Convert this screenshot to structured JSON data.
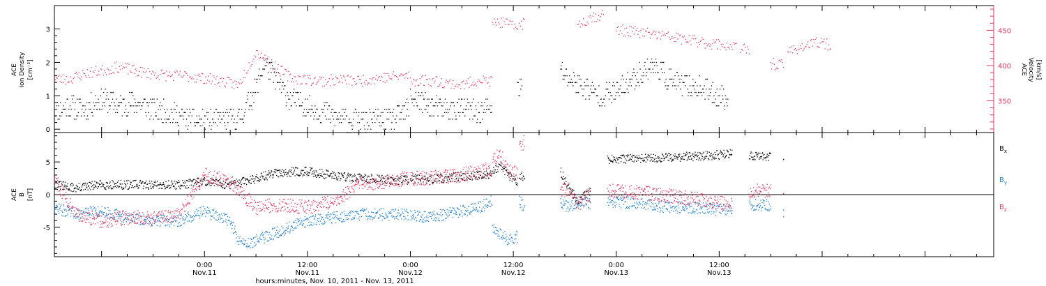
{
  "chart_data": [
    {
      "type": "scatter",
      "panel": "top",
      "ylabel_left": [
        "ACE",
        "Ion Density",
        "[cm⁻³]"
      ],
      "ylabel_right": [
        "ACE",
        "Velocity",
        "[km/s]"
      ],
      "yticks_left": [
        "0",
        "1",
        "2",
        "3"
      ],
      "yticks_right": [
        "350",
        "400",
        "450"
      ],
      "ylim_left": [
        -0.1,
        3.7
      ],
      "ylim_right": [
        305,
        485
      ],
      "x_hours_range": [
        -17.5,
        92
      ],
      "series": [
        {
          "axis": "left",
          "color": "#000000",
          "segments": [
            {
              "x": [
                -17.5,
                -16,
                -14,
                -12,
                -10,
                -8,
                -6,
                -4,
                -2,
                0,
                2,
                4,
                6,
                7,
                8,
                10,
                12,
                14,
                16,
                18,
                20,
                22,
                23.8
              ],
              "y": [
                0.5,
                0.7,
                0.6,
                0.9,
                0.7,
                0.8,
                0.6,
                0.5,
                0.3,
                0.2,
                0.25,
                0.3,
                1.2,
                2.0,
                1.6,
                0.9,
                0.7,
                0.5,
                0.3,
                0.2,
                0.25,
                0.3,
                0.6
              ]
            },
            {
              "x": [
                24,
                26,
                28,
                30,
                32,
                33.5
              ],
              "y": [
                1.0,
                0.7,
                0.6,
                0.6,
                0.5,
                0.7
              ]
            },
            {
              "x": [
                36.5,
                37
              ],
              "y": [
                1.2,
                1.3
              ]
            },
            {
              "x": [
                41.5,
                42,
                44,
                46,
                48,
                50,
                52,
                53,
                54,
                56,
                58,
                60,
                61
              ],
              "y": [
                1.8,
                1.6,
                1.3,
                1.0,
                1.1,
                1.5,
                1.9,
                1.8,
                1.5,
                1.3,
                1.2,
                1.0,
                0.9
              ]
            }
          ]
        },
        {
          "axis": "right",
          "color": "#e8325f",
          "segments": [
            {
              "x": [
                -17.5,
                -16,
                -14,
                -12,
                -10,
                -8,
                -6,
                -4,
                -2,
                0,
                2,
                4,
                6,
                7,
                8,
                10,
                12,
                14,
                16,
                18,
                20,
                22,
                23.8
              ],
              "y": [
                382,
                380,
                388,
                393,
                398,
                392,
                388,
                386,
                385,
                382,
                378,
                372,
                420,
                412,
                400,
                383,
                380,
                378,
                380,
                378,
                382,
                384,
                386
              ]
            },
            {
              "x": [
                24,
                26,
                28,
                30,
                32,
                33.5
              ],
              "y": [
                378,
                379,
                376,
                372,
                380,
                377
              ]
            },
            {
              "x": [
                33.6,
                34,
                35,
                36,
                36.5
              ],
              "y": [
                458,
                462,
                460,
                455,
                458
              ]
            },
            {
              "x": [
                36.7,
                37.3
              ],
              "y": [
                458,
                460
              ]
            },
            {
              "x": [
                43.5,
                45,
                46.5
              ],
              "y": [
                458,
                468,
                472
              ]
            },
            {
              "x": [
                48,
                50,
                52,
                54,
                56,
                58,
                60,
                62
              ],
              "y": [
                451,
                448,
                445,
                441,
                437,
                433,
                430,
                426
              ]
            },
            {
              "x": [
                62.5,
                63.5
              ],
              "y": [
                423,
                422
              ]
            },
            {
              "x": [
                66,
                67.5
              ],
              "y": [
                403,
                400
              ]
            },
            {
              "x": [
                68,
                70,
                72,
                73
              ],
              "y": [
                420,
                428,
                433,
                428
              ]
            }
          ]
        }
      ]
    },
    {
      "type": "scatter",
      "panel": "bottom",
      "ylabel": [
        "ACE",
        "B",
        "[nT]"
      ],
      "yticks": [
        "-5",
        "0",
        "5"
      ],
      "ylim": [
        -9.5,
        9.5
      ],
      "zero_line": true,
      "xticks": [
        {
          "time": "0:00",
          "date": "Nov.11"
        },
        {
          "time": "12:00",
          "date": "Nov.11"
        },
        {
          "time": "0:00",
          "date": "Nov.12"
        },
        {
          "time": "12:00",
          "date": "Nov.12"
        },
        {
          "time": "0:00",
          "date": "Nov.13"
        },
        {
          "time": "12:00",
          "date": "Nov.13"
        }
      ],
      "xlabel": "hours:minutes, Nov. 10, 2011 - Nov. 13, 2011",
      "series": [
        {
          "name": "B",
          "subscript": "x",
          "color": "#000000",
          "segments": [
            {
              "x": [
                -17.5,
                -15,
                -12,
                -9,
                -6,
                -3,
                0,
                3,
                6,
                9,
                12,
                15,
                18,
                21,
                23.8
              ],
              "y": [
                1.5,
                1.0,
                1.5,
                1.5,
                1.5,
                1.5,
                2.0,
                1.5,
                2.5,
                3.5,
                3.5,
                3.0,
                2.5,
                2.3,
                2.2
              ]
            },
            {
              "x": [
                24,
                26,
                28,
                30,
                32,
                33.5
              ],
              "y": [
                2.5,
                2.3,
                2.5,
                2.8,
                3.0,
                3.2
              ]
            },
            {
              "x": [
                33.6,
                34.5,
                35.5,
                36.5
              ],
              "y": [
                3.5,
                4.5,
                3.0,
                2.0
              ]
            },
            {
              "x": [
                36.7,
                37.3
              ],
              "y": [
                3.0,
                2.8
              ]
            },
            {
              "x": [
                41.5,
                42.5,
                43.5,
                45
              ],
              "y": [
                3.5,
                1.0,
                -1.0,
                0.5
              ]
            },
            {
              "x": [
                47,
                50,
                53,
                56,
                59,
                61.5
              ],
              "y": [
                5.3,
                5.5,
                5.6,
                5.8,
                6.0,
                6.2
              ]
            },
            {
              "x": [
                63.5,
                66
              ],
              "y": [
                6.0,
                5.9
              ]
            },
            {
              "x": [
                67.5
              ],
              "y": [
                5.3
              ]
            }
          ]
        },
        {
          "name": "B",
          "subscript": "y",
          "color": "#1a7fd6",
          "segments": [
            {
              "x": [
                -17.5,
                -15,
                -12,
                -9,
                -6,
                -3,
                0,
                3,
                4,
                5,
                6,
                8,
                10,
                12,
                15,
                18,
                21,
                23.8
              ],
              "y": [
                -2.0,
                -3.0,
                -2.5,
                -3.5,
                -4.0,
                -4.0,
                -2.5,
                -4.0,
                -7.0,
                -7.5,
                -7.0,
                -6.0,
                -5.0,
                -4.0,
                -3.5,
                -3.0,
                -3.0,
                -3.0
              ]
            },
            {
              "x": [
                24,
                26,
                28,
                30,
                32,
                33.5
              ],
              "y": [
                -3.0,
                -3.5,
                -3.0,
                -2.5,
                -2.0,
                -1.0
              ]
            },
            {
              "x": [
                33.6,
                34.5,
                35.5,
                36.5
              ],
              "y": [
                -5.0,
                -6.0,
                -7.0,
                -6.5
              ]
            },
            {
              "x": [
                36.7,
                37.3
              ],
              "y": [
                -1.0,
                -2.0
              ]
            },
            {
              "x": [
                41.5,
                42.5,
                43.5,
                45
              ],
              "y": [
                -1.5,
                -2.0,
                -1.0,
                -1.5
              ]
            },
            {
              "x": [
                47,
                50,
                53,
                56,
                59,
                61.5
              ],
              "y": [
                -1.0,
                -1.3,
                -1.8,
                -2.0,
                -2.2,
                -2.5
              ]
            },
            {
              "x": [
                63.5,
                66
              ],
              "y": [
                -1.5,
                -1.7
              ]
            },
            {
              "x": [
                67.5
              ],
              "y": [
                -2.5
              ]
            }
          ]
        },
        {
          "name": "B",
          "subscript": "z",
          "color": "#e8325f",
          "segments": [
            {
              "x": [
                -17.5,
                -15,
                -12,
                -9,
                -6,
                -3,
                0,
                3,
                6,
                9,
                12,
                15,
                18,
                21,
                23.8
              ],
              "y": [
                2.5,
                -3.0,
                -4.0,
                -3.5,
                -3.5,
                -3.0,
                3.0,
                2.0,
                -2.0,
                -1.5,
                -2.0,
                -1.0,
                1.5,
                2.0,
                2.5
              ]
            },
            {
              "x": [
                24,
                26,
                28,
                30,
                32,
                33.5
              ],
              "y": [
                2.5,
                2.5,
                2.8,
                3.0,
                3.5,
                4.0
              ]
            },
            {
              "x": [
                33.6,
                34.5,
                35.5,
                36.5
              ],
              "y": [
                5.5,
                6.0,
                4.0,
                3.0
              ]
            },
            {
              "x": [
                36.7,
                37.3
              ],
              "y": [
                7.5,
                8.0
              ]
            },
            {
              "x": [
                41.5,
                42.5,
                43.5,
                45
              ],
              "y": [
                0.5,
                1.0,
                -1.5,
                0.0
              ]
            },
            {
              "x": [
                47,
                50,
                53,
                56,
                59,
                61.5
              ],
              "y": [
                0.5,
                0.5,
                0.0,
                -0.5,
                -1.0,
                -1.5
              ]
            },
            {
              "x": [
                63.5,
                66
              ],
              "y": [
                0.5,
                0.6
              ]
            },
            {
              "x": [
                67.5
              ],
              "y": [
                0.5
              ]
            }
          ]
        }
      ]
    }
  ]
}
